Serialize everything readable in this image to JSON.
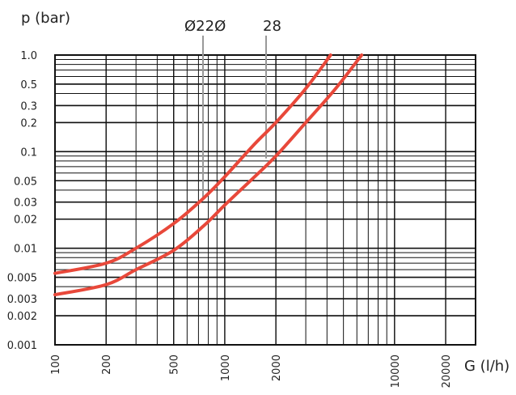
{
  "chart_data": {
    "type": "line",
    "x_scale": "log",
    "y_scale": "log",
    "xlim": [
      100,
      30000
    ],
    "ylim": [
      0.001,
      1.0
    ],
    "xlabel": "G (l/h)",
    "ylabel": "p (bar)",
    "x_ticks": [
      {
        "value": 100,
        "label": "100"
      },
      {
        "value": 200,
        "label": "200"
      },
      {
        "value": 500,
        "label": "500"
      },
      {
        "value": 1000,
        "label": "1000"
      },
      {
        "value": 2000,
        "label": "2000"
      },
      {
        "value": 10000,
        "label": "10000"
      },
      {
        "value": 20000,
        "label": "20000"
      }
    ],
    "y_ticks": [
      {
        "value": 1.0,
        "label": "1.0"
      },
      {
        "value": 0.5,
        "label": "0.5"
      },
      {
        "value": 0.3,
        "label": "0.3"
      },
      {
        "value": 0.2,
        "label": "0.2"
      },
      {
        "value": 0.1,
        "label": "0.1"
      },
      {
        "value": 0.05,
        "label": "0.05"
      },
      {
        "value": 0.03,
        "label": "0.03"
      },
      {
        "value": 0.02,
        "label": "0.02"
      },
      {
        "value": 0.01,
        "label": "0.01"
      },
      {
        "value": 0.005,
        "label": "0.005"
      },
      {
        "value": 0.003,
        "label": "0.003"
      },
      {
        "value": 0.002,
        "label": "0.002"
      },
      {
        "value": 0.001,
        "label": "0.001"
      }
    ],
    "grid": true,
    "series": [
      {
        "name": "Ø22Ø",
        "color": "#e8483a",
        "points": [
          [
            100,
            0.0055
          ],
          [
            200,
            0.007
          ],
          [
            300,
            0.01
          ],
          [
            500,
            0.018
          ],
          [
            750,
            0.033
          ],
          [
            1000,
            0.055
          ],
          [
            1500,
            0.12
          ],
          [
            2000,
            0.2
          ],
          [
            3000,
            0.45
          ],
          [
            4200,
            1.0
          ]
        ]
      },
      {
        "name": "28",
        "color": "#e8483a",
        "points": [
          [
            100,
            0.0033
          ],
          [
            200,
            0.0042
          ],
          [
            300,
            0.006
          ],
          [
            500,
            0.0095
          ],
          [
            750,
            0.017
          ],
          [
            1000,
            0.028
          ],
          [
            1500,
            0.055
          ],
          [
            2000,
            0.09
          ],
          [
            3000,
            0.2
          ],
          [
            4500,
            0.45
          ],
          [
            6400,
            1.0
          ]
        ]
      }
    ]
  }
}
